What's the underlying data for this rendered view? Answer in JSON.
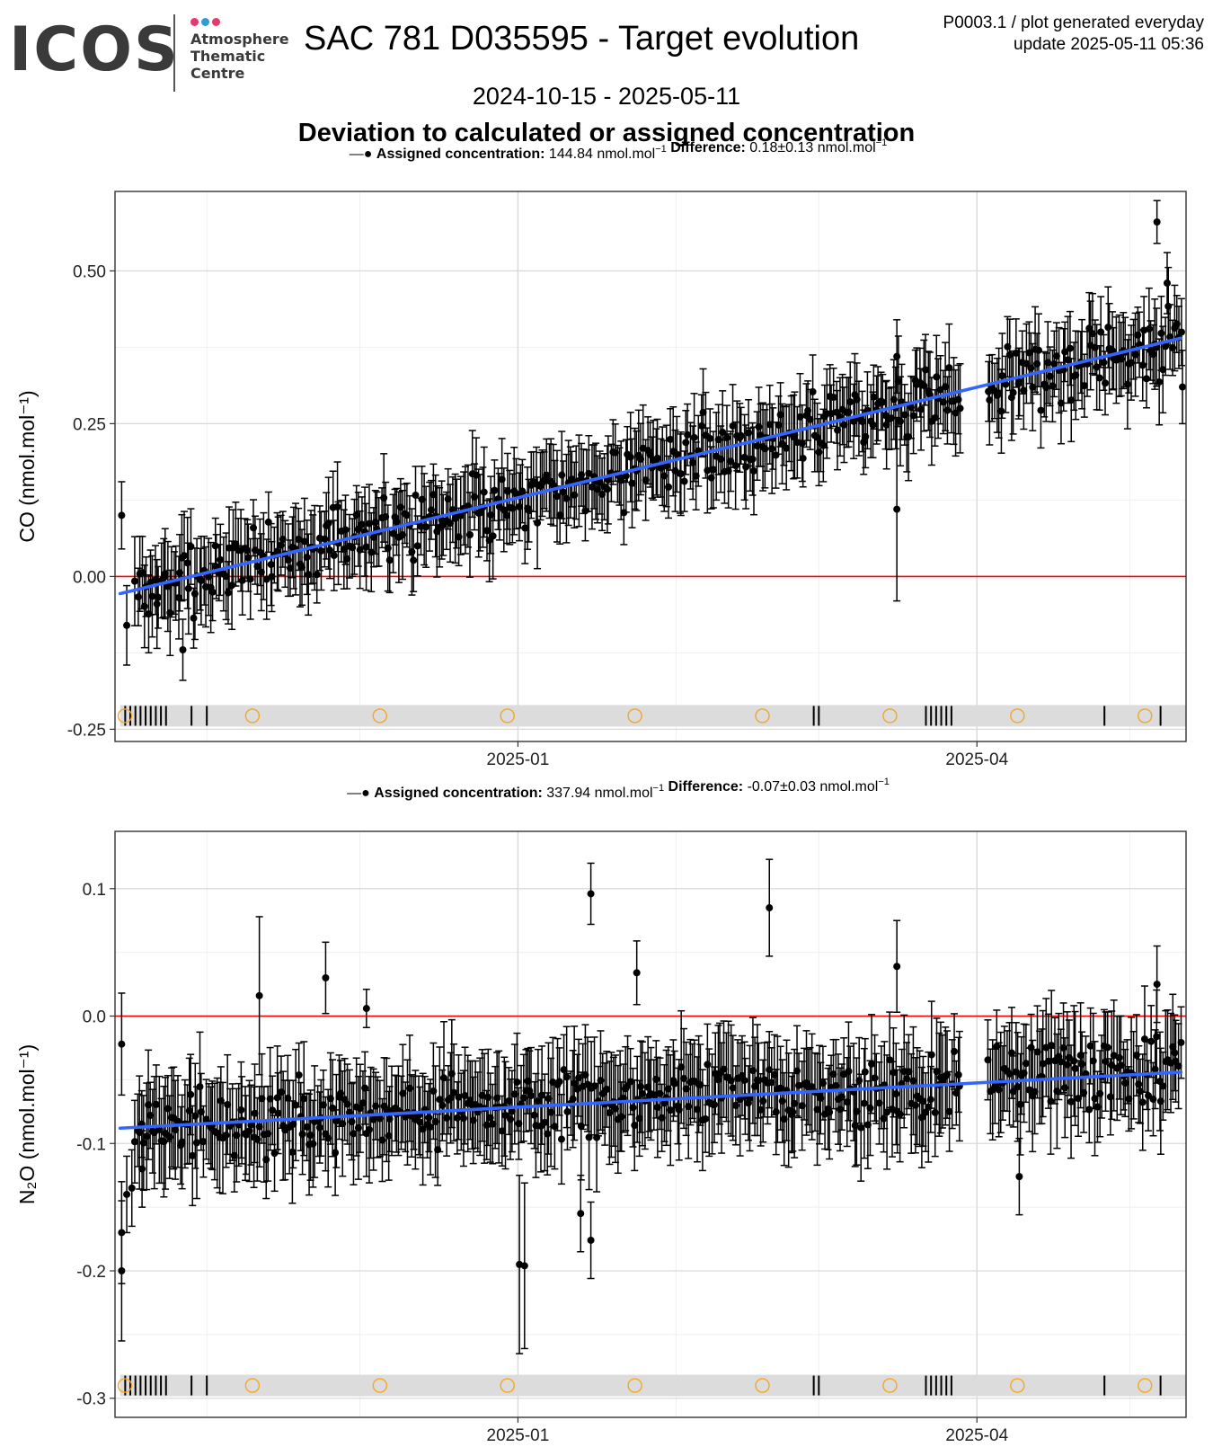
{
  "header": {
    "logo_text": "ICOS",
    "logo_lines": [
      "Atmosphere",
      "Thematic",
      "Centre"
    ],
    "logo_dot_colors": [
      "#e5386d",
      "#2f9bd8",
      "#e5386d"
    ],
    "title": "SAC 781 D035595 - Target evolution",
    "meta_line1": "P0003.1 / plot generated everyday",
    "meta_line2": "update  2025-05-11 05:36",
    "date_range": "2024-10-15 - 2025-05-11",
    "subtitle": "Deviation to calculated or assigned concentration"
  },
  "colors": {
    "points": "#000000",
    "trend": "#3366ff",
    "zero_line": "#ff0000",
    "flag_marker": "#f5a623",
    "flag_band": "#dcdcdc",
    "panel_border": "#333333",
    "grid_major": "#d9d9d9",
    "grid_minor": "#efefef"
  },
  "chart_data": [
    {
      "type": "scatter",
      "panel": "CO",
      "ylabel": "CO (nmol.mol⁻¹)",
      "ylim": [
        -0.27,
        0.63
      ],
      "yticks": [
        -0.25,
        0.0,
        0.25,
        0.5
      ],
      "ytick_labels": [
        "-0.25",
        "0.00",
        "0.25",
        "0.50"
      ],
      "xlim": [
        "2024-10-14",
        "2025-05-12"
      ],
      "xticks": [
        "2025-01-01",
        "2025-04-01"
      ],
      "xtick_labels": [
        "2025-01",
        "2025-04"
      ],
      "x_minor_ticks": [
        "2024-11-01",
        "2024-12-01",
        "2025-02-01",
        "2025-03-01",
        "2025-05-01"
      ],
      "legend": {
        "label_bold": "Assigned concentration:",
        "value": " 144.84 nmol.mol",
        "value_sup": "−1",
        "diff_bold": "Difference:",
        "diff_value": " 0.18±0.13 nmol.mol",
        "diff_sup": "−1",
        "placement": "top-center"
      },
      "series_trend": {
        "x_start": "2024-10-15",
        "y_start": -0.028,
        "x_end": "2025-05-11",
        "y_end": 0.39
      },
      "zero_line": 0.0,
      "noise": {
        "amp": 0.045,
        "err_min": 0.045,
        "err_max": 0.075,
        "seed": 7
      },
      "outliers": [
        {
          "x": "2024-10-15",
          "y": 0.1,
          "err": 0.055
        },
        {
          "x": "2024-10-16",
          "y": -0.08,
          "err": 0.065
        },
        {
          "x": "2024-10-27",
          "y": -0.12,
          "err": 0.05
        },
        {
          "x": "2025-03-16",
          "y": 0.11,
          "err": 0.15
        },
        {
          "x": "2025-03-16",
          "y": 0.36,
          "err": 0.06
        },
        {
          "x": "2025-05-06",
          "y": 0.58,
          "err": 0.035
        },
        {
          "x": "2025-05-08",
          "y": 0.48,
          "err": 0.05
        },
        {
          "x": "2025-05-11",
          "y": 0.31,
          "err": 0.06
        }
      ],
      "flag_band_y": -0.228,
      "flag_circles_x": [
        "2024-10-14",
        "2024-11-08",
        "2024-12-03",
        "2024-12-28",
        "2025-01-22",
        "2025-02-16",
        "2025-03-13",
        "2025-04-07",
        "2025-05-02"
      ],
      "flag_ticks_x": [
        "2024-10-16",
        "2024-10-17",
        "2024-10-18",
        "2024-10-19",
        "2024-10-20",
        "2024-10-21",
        "2024-10-22",
        "2024-10-23",
        "2024-10-24",
        "2024-10-29",
        "2024-11-01",
        "2025-02-28",
        "2025-03-01",
        "2025-03-22",
        "2025-03-23",
        "2025-03-24",
        "2025-03-25",
        "2025-03-26",
        "2025-03-27",
        "2025-04-26",
        "2025-05-07"
      ],
      "gaps": [
        [
          "2025-03-29",
          "2025-04-03"
        ]
      ]
    },
    {
      "type": "scatter",
      "panel": "N2O",
      "ylabel": "N₂O (nmol.mol⁻¹)",
      "ylim": [
        -0.315,
        0.145
      ],
      "yticks": [
        -0.3,
        -0.2,
        -0.1,
        0.0,
        0.1
      ],
      "ytick_labels": [
        "-0.3",
        "-0.2",
        "-0.1",
        "0.0",
        "0.1"
      ],
      "xlim": [
        "2024-10-14",
        "2025-05-12"
      ],
      "xticks": [
        "2025-01-01",
        "2025-04-01"
      ],
      "xtick_labels": [
        "2025-01",
        "2025-04"
      ],
      "x_minor_ticks": [
        "2024-11-01",
        "2024-12-01",
        "2025-02-01",
        "2025-03-01",
        "2025-05-01"
      ],
      "legend": {
        "label_bold": "Assigned concentration:",
        "value": " 337.94 nmol.mol",
        "value_sup": "−1",
        "diff_bold": "Difference:",
        "diff_value": " -0.07±0.03 nmol.mol",
        "diff_sup": "−1",
        "placement": "top-center"
      },
      "series_trend": {
        "x_start": "2024-10-15",
        "y_start": -0.088,
        "x_end": "2025-05-11",
        "y_end": -0.044
      },
      "zero_line": 0.0,
      "noise": {
        "amp": 0.022,
        "err_min": 0.025,
        "err_max": 0.045,
        "seed": 19
      },
      "outliers": [
        {
          "x": "2024-10-15",
          "y": -0.022,
          "err": 0.04
        },
        {
          "x": "2024-10-15",
          "y": -0.2,
          "err": 0.055
        },
        {
          "x": "2024-10-15",
          "y": -0.17,
          "err": 0.04
        },
        {
          "x": "2024-10-16",
          "y": -0.14,
          "err": 0.03
        },
        {
          "x": "2024-10-17",
          "y": -0.135,
          "err": 0.03
        },
        {
          "x": "2024-10-19",
          "y": -0.12,
          "err": 0.03
        },
        {
          "x": "2024-11-11",
          "y": 0.016,
          "err": 0.062
        },
        {
          "x": "2024-11-24",
          "y": 0.03,
          "err": 0.028
        },
        {
          "x": "2024-12-02",
          "y": 0.006,
          "err": 0.015
        },
        {
          "x": "2025-01-01",
          "y": -0.195,
          "err": 0.07
        },
        {
          "x": "2025-01-02",
          "y": -0.196,
          "err": 0.065
        },
        {
          "x": "2025-01-15",
          "y": 0.096,
          "err": 0.024
        },
        {
          "x": "2025-01-15",
          "y": -0.176,
          "err": 0.03
        },
        {
          "x": "2025-01-13",
          "y": -0.155,
          "err": 0.03
        },
        {
          "x": "2025-01-24",
          "y": 0.034,
          "err": 0.025
        },
        {
          "x": "2025-02-19",
          "y": 0.085,
          "err": 0.038
        },
        {
          "x": "2025-03-16",
          "y": 0.039,
          "err": 0.036
        },
        {
          "x": "2025-04-09",
          "y": -0.126,
          "err": 0.03
        },
        {
          "x": "2025-05-06",
          "y": 0.025,
          "err": 0.03
        }
      ],
      "flag_band_y": -0.29,
      "flag_circles_x": [
        "2024-10-14",
        "2024-11-08",
        "2024-12-03",
        "2024-12-28",
        "2025-01-22",
        "2025-02-16",
        "2025-03-13",
        "2025-04-07",
        "2025-05-02"
      ],
      "flag_ticks_x": [
        "2024-10-16",
        "2024-10-17",
        "2024-10-18",
        "2024-10-19",
        "2024-10-20",
        "2024-10-21",
        "2024-10-22",
        "2024-10-23",
        "2024-10-24",
        "2024-10-29",
        "2024-11-01",
        "2025-02-28",
        "2025-03-01",
        "2025-03-22",
        "2025-03-23",
        "2025-03-24",
        "2025-03-25",
        "2025-03-26",
        "2025-03-27",
        "2025-04-26",
        "2025-05-07"
      ],
      "gaps": [
        [
          "2025-03-29",
          "2025-04-03"
        ]
      ]
    }
  ]
}
